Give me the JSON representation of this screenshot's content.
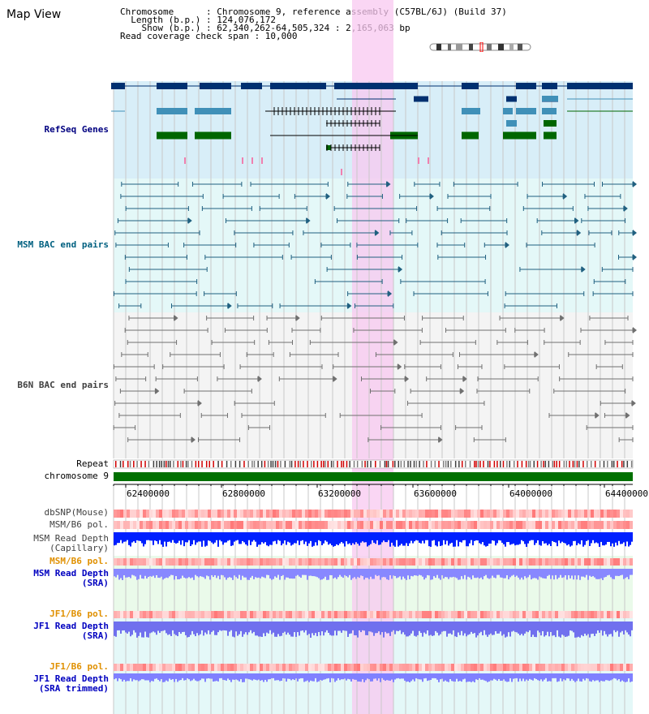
{
  "header": {
    "title": "Map View",
    "info_lines": [
      "Chromosome      : Chromosome 9, reference assembly (C57BL/6J) (Build 37)",
      "  Length (b.p.) : 124,076,172",
      "    Show (b.p.) : 62,340,262-64,505,324 : 2,165,063 bp",
      "Read coverage check span : 10,000"
    ]
  },
  "tracks": {
    "refseq": "RefSeq Genes",
    "msm_bac": "MSM BAC end pairs",
    "b6n_bac": "B6N BAC end pairs",
    "repeat": "Repeat",
    "chromosome": "chromosome 9",
    "dbsnp": "dbSNP(Mouse)",
    "msm_b6_pol_1": "MSM/B6 pol.",
    "msm_read_depth_cap_1": "MSM Read Depth",
    "msm_read_depth_cap_2": "(Capillary)",
    "msm_b6_pol_2": "MSM/B6 pol.",
    "msm_read_depth_sra_1": "MSM Read Depth",
    "msm_read_depth_sra_2": "(SRA)",
    "jf1_b6_pol_1": "JF1/B6 pol.",
    "jf1_read_depth_sra_1": "JF1 Read Depth",
    "jf1_read_depth_sra_2": "(SRA)",
    "jf1_b6_pol_2": "JF1/B6 pol.",
    "jf1_read_depth_trim_1": "JF1 Read Depth",
    "jf1_read_depth_trim_2": "(SRA trimmed)"
  },
  "axis": {
    "ticks": [
      "62400000",
      "62800000",
      "63200000",
      "63600000",
      "64000000",
      "64400000"
    ]
  },
  "colors": {
    "refseq_bg": "#d8eef8",
    "msm_bg": "#e4f8f8",
    "b6n_bg": "#f4f4f4",
    "highlight": "#f8c8f0",
    "gene_navy": "#003070",
    "gene_teal": "#4090b8",
    "gene_green": "#006600",
    "msm_line": "#206080",
    "b6n_line": "#707070",
    "chrom_bar": "#007000",
    "depth_capillary": "#0020ff",
    "depth_sra": "#8888ff",
    "label_navy": "#000080",
    "label_teal": "#006080",
    "label_orange": "#e09000",
    "label_blue": "#0000c0",
    "label_dark": "#000000"
  }
}
